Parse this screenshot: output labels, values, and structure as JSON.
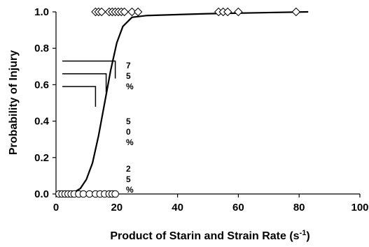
{
  "chart_data": {
    "type": "scatter",
    "xlabel": "Product of Starin and Strain Rate (s",
    "xlabel_superscript": "-1",
    "xlabel_suffix": ")",
    "ylabel": "Probability of Injury",
    "xlim": [
      0,
      100
    ],
    "ylim": [
      0,
      1
    ],
    "x_ticks": [
      0,
      20,
      40,
      60,
      80,
      100
    ],
    "x_tick_labels": [
      "0",
      "20",
      "40",
      "60",
      "80",
      "100"
    ],
    "y_ticks": [
      0,
      0.2,
      0.4,
      0.6,
      0.8,
      1.0
    ],
    "y_tick_labels": [
      "0.0",
      "0.2",
      "0.4",
      "0.6",
      "0.8",
      "1.0"
    ],
    "grid": false,
    "legend": "none",
    "series": [
      {
        "marker": "diamond",
        "color": "#000000",
        "points": [
          {
            "x": 13,
            "y": 1
          },
          {
            "x": 14,
            "y": 1
          },
          {
            "x": 15,
            "y": 1
          },
          {
            "x": 17.5,
            "y": 1
          },
          {
            "x": 18.5,
            "y": 1
          },
          {
            "x": 19.5,
            "y": 1
          },
          {
            "x": 20.5,
            "y": 1
          },
          {
            "x": 21.5,
            "y": 1
          },
          {
            "x": 22.5,
            "y": 1
          },
          {
            "x": 25,
            "y": 1
          },
          {
            "x": 27,
            "y": 1
          },
          {
            "x": 53.5,
            "y": 1
          },
          {
            "x": 55,
            "y": 1
          },
          {
            "x": 56.5,
            "y": 1
          },
          {
            "x": 60,
            "y": 1
          },
          {
            "x": 79,
            "y": 1
          }
        ]
      },
      {
        "marker": "circle",
        "color": "#000000",
        "points": [
          {
            "x": 1,
            "y": 0
          },
          {
            "x": 2,
            "y": 0
          },
          {
            "x": 3,
            "y": 0
          },
          {
            "x": 4,
            "y": 0
          },
          {
            "x": 5,
            "y": 0
          },
          {
            "x": 6,
            "y": 0
          },
          {
            "x": 7.5,
            "y": 0
          },
          {
            "x": 9,
            "y": 0
          },
          {
            "x": 11,
            "y": 0
          },
          {
            "x": 13,
            "y": 0
          },
          {
            "x": 14.5,
            "y": 0
          },
          {
            "x": 16,
            "y": 0
          },
          {
            "x": 17.5,
            "y": 0
          },
          {
            "x": 18.5,
            "y": 0
          },
          {
            "x": 19.5,
            "y": 0
          }
        ]
      }
    ],
    "fit_curve": {
      "type": "line",
      "color": "#000000",
      "points": [
        {
          "x": 0,
          "y": 0
        },
        {
          "x": 6,
          "y": 0.01
        },
        {
          "x": 8,
          "y": 0.03
        },
        {
          "x": 10,
          "y": 0.08
        },
        {
          "x": 12,
          "y": 0.17
        },
        {
          "x": 14,
          "y": 0.32
        },
        {
          "x": 16,
          "y": 0.5
        },
        {
          "x": 18,
          "y": 0.68
        },
        {
          "x": 20,
          "y": 0.83
        },
        {
          "x": 22,
          "y": 0.92
        },
        {
          "x": 25,
          "y": 0.97
        },
        {
          "x": 30,
          "y": 0.98
        },
        {
          "x": 50,
          "y": 0.99
        },
        {
          "x": 83,
          "y": 1.0
        }
      ]
    },
    "annotations": [
      {
        "name": "75-percent",
        "label_lines": [
          "7",
          "5",
          "%"
        ],
        "x_value": 19.5,
        "y_value": 0.73
      },
      {
        "name": "50-percent",
        "label_lines": [
          "5",
          "0",
          "%"
        ],
        "x_value": 16.5,
        "y_value": 0.66
      },
      {
        "name": "25-percent",
        "label_lines": [
          "2",
          "5",
          "%"
        ],
        "x_value": 13.0,
        "y_value": 0.59
      }
    ]
  }
}
